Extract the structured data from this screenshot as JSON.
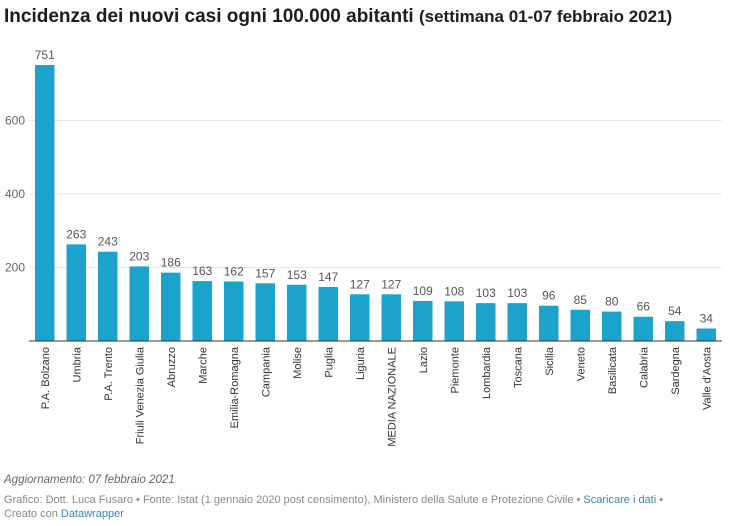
{
  "title": "Incidenza dei nuovi casi ogni 100.000 abitanti",
  "subtitle": "(settimana 01-07 febbraio 2021)",
  "colors": {
    "bar": "#1ba3cc",
    "grid": "#e6e6e6",
    "axis": "#333333"
  },
  "chart_data": {
    "type": "bar",
    "categories": [
      "P.A. Bolzano",
      "Umbria",
      "P.A. Trento",
      "Friuli Venezia Giulia",
      "Abruzzo",
      "Marche",
      "Emilia-Romagna",
      "Campania",
      "Molise",
      "Puglia",
      "Liguria",
      "MEDIA NAZIONALE",
      "Lazio",
      "Piemonte",
      "Lombardia",
      "Toscana",
      "Sicilia",
      "Veneto",
      "Basilicata",
      "Calabria",
      "Sardegna",
      "Valle d'Aosta"
    ],
    "values": [
      751,
      263,
      243,
      203,
      186,
      163,
      162,
      157,
      153,
      147,
      127,
      127,
      109,
      108,
      103,
      103,
      96,
      85,
      80,
      66,
      54,
      34
    ],
    "value_labels": [
      "751",
      "263",
      "243",
      "203",
      "186",
      "163",
      "162",
      "157",
      "153",
      "147",
      "127",
      "127",
      "109",
      "108",
      "103",
      "103",
      "96",
      "85",
      "80",
      "66",
      "54",
      "34"
    ],
    "yticks": [
      200,
      400,
      600
    ],
    "ytick_labels": [
      "200",
      "400",
      "600"
    ],
    "ylim": [
      0,
      751
    ],
    "grid": true
  },
  "footer": {
    "updated": "Aggiornamento: 07 febbraio 2021",
    "credit_prefix": "Grafico: Dott. Luca Fusaro • Fonte: Istat (1 gennaio 2020 post censimento), Ministero della ",
    "credit_salute": "Salute",
    "credit_and": " e ",
    "credit_pc": "Protezione Civile",
    "credit_sep": " • ",
    "download": "Scaricare i dati",
    "credit_end": " •",
    "created_prefix": "Creato con ",
    "datawrapper": "Datawrapper"
  }
}
